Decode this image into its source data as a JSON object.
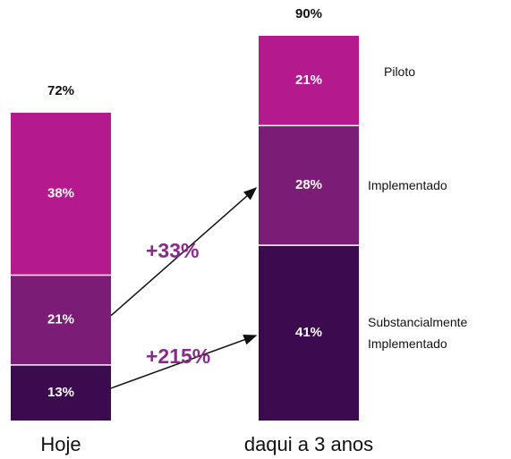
{
  "chart_data": {
    "type": "stacked_bar",
    "categories": [
      "Hoje",
      "daqui a 3 anos"
    ],
    "series": [
      {
        "name": "Substancialmente Implementado",
        "color": "#3b0a4f",
        "values": [
          13,
          41
        ],
        "value_labels": [
          "13%",
          "41%"
        ]
      },
      {
        "name": "Implementado",
        "color": "#7b1c76",
        "values": [
          21,
          28
        ],
        "value_labels": [
          "21%",
          "28%"
        ]
      },
      {
        "name": "Piloto",
        "color": "#b41a8e",
        "values": [
          38,
          21
        ],
        "value_labels": [
          "38%",
          "21%"
        ]
      }
    ],
    "totals": [
      72,
      90
    ],
    "total_labels": [
      "72%",
      "90%"
    ],
    "annotations": [
      "+33%",
      "+215%"
    ]
  }
}
